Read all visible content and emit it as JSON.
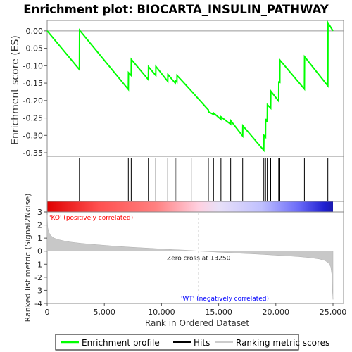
{
  "chart_data": {
    "type": "line",
    "title": "Enrichment plot: BIOCARTA_INSULIN_PATHWAY",
    "top_panel": {
      "ylabel": "Enrichment score (ES)",
      "ylim": [
        -0.36,
        0.03
      ],
      "yticks": [
        "0.00",
        "-0.05",
        "-0.10",
        "-0.15",
        "-0.20",
        "-0.25",
        "-0.30",
        "-0.35"
      ],
      "ytick_values": [
        0.0,
        -0.05,
        -0.1,
        -0.15,
        -0.2,
        -0.25,
        -0.3,
        -0.35
      ],
      "zero_line": true,
      "series": [
        {
          "name": "Enrichment profile",
          "color": "#00ff00",
          "x": [
            0,
            2820,
            2830,
            7100,
            7110,
            7350,
            7360,
            8850,
            8860,
            9500,
            9510,
            10550,
            10560,
            11200,
            11210,
            11350,
            11360,
            12600,
            14100,
            14110,
            14550,
            14560,
            15200,
            15210,
            16050,
            16060,
            17100,
            17110,
            18950,
            18960,
            19100,
            19110,
            19250,
            19260,
            19550,
            19560,
            20250,
            20260,
            20350,
            20360,
            22500,
            22510,
            24550,
            24560,
            25000
          ],
          "y": [
            0.0,
            -0.111,
            0.002,
            -0.168,
            -0.12,
            -0.128,
            -0.082,
            -0.14,
            -0.103,
            -0.128,
            -0.102,
            -0.145,
            -0.125,
            -0.15,
            -0.143,
            -0.147,
            -0.128,
            -0.172,
            -0.227,
            -0.232,
            -0.24,
            -0.236,
            -0.254,
            -0.247,
            -0.268,
            -0.258,
            -0.302,
            -0.272,
            -0.343,
            -0.3,
            -0.305,
            -0.253,
            -0.262,
            -0.212,
            -0.222,
            -0.173,
            -0.202,
            -0.147,
            -0.148,
            -0.084,
            -0.167,
            -0.074,
            -0.158,
            0.023,
            0.0
          ]
        }
      ]
    },
    "hits_panel": {
      "series_name": "Hits",
      "positions": [
        2820,
        7100,
        7350,
        8850,
        9500,
        10550,
        11200,
        11350,
        12600,
        14100,
        14550,
        15200,
        16050,
        17100,
        18950,
        19100,
        19250,
        19550,
        20250,
        20350,
        22500,
        24550
      ]
    },
    "bottom_panel": {
      "ylabel": "Ranked list metric (Signal2Noise)",
      "xlabel": "Rank in Ordered Dataset",
      "xlim": [
        0,
        25000
      ],
      "ylim": [
        -4,
        3
      ],
      "yticks": [
        "3",
        "2",
        "1",
        "0",
        "-1",
        "-2",
        "-3",
        "-4"
      ],
      "ytick_values": [
        3,
        2,
        1,
        0,
        -1,
        -2,
        -3,
        -4
      ],
      "xticks": [
        "0",
        "5,000",
        "10,000",
        "15,000",
        "20,000",
        "25,000"
      ],
      "xtick_values": [
        0,
        5000,
        10000,
        15000,
        20000,
        25000
      ],
      "series_name": "Ranking metric scores",
      "metric_curve": {
        "x": [
          0,
          50,
          150,
          300,
          600,
          1000,
          1500,
          2000,
          3000,
          4000,
          5000,
          6000,
          7000,
          8000,
          9000,
          10000,
          11000,
          12000,
          13000,
          13250,
          14000,
          15000,
          16000,
          17000,
          18000,
          19000,
          20000,
          21000,
          22000,
          23000,
          23800,
          24300,
          24600,
          24800,
          24900,
          24950,
          25000
        ],
        "y": [
          2.8,
          1.8,
          1.45,
          1.2,
          1.0,
          0.88,
          0.78,
          0.7,
          0.6,
          0.52,
          0.45,
          0.38,
          0.32,
          0.27,
          0.22,
          0.17,
          0.12,
          0.08,
          0.03,
          0.0,
          -0.03,
          -0.08,
          -0.12,
          -0.17,
          -0.21,
          -0.26,
          -0.31,
          -0.36,
          -0.42,
          -0.5,
          -0.6,
          -0.72,
          -0.9,
          -1.2,
          -1.8,
          -3.0,
          -3.7
        ]
      },
      "zero_cross_label": "Zero cross at 13250",
      "zero_cross_rank": 13250,
      "pos_label": "'KO' (positively correlated)",
      "neg_label": "'WT' (negatively correlated)",
      "pos_label_color": "#ff0000",
      "neg_label_color": "#0000ff"
    },
    "legend": {
      "placement": "bottom",
      "items": [
        {
          "label": "Enrichment profile",
          "color": "#00ff00"
        },
        {
          "label": "Hits",
          "color": "#000000"
        },
        {
          "label": "Ranking metric scores",
          "color": "#cccccc"
        }
      ]
    }
  }
}
